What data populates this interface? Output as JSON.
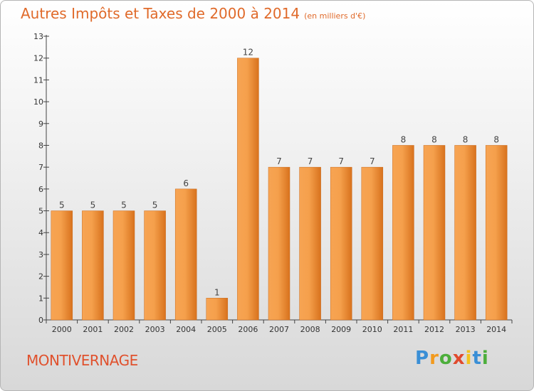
{
  "title": "Autres Impôts et Taxes de 2000 à 2014",
  "subtitle": "(en milliers d'€)",
  "commune": "MONTIVERNAGE",
  "logo": {
    "p": "P",
    "r": "r",
    "o": "o",
    "x": "x",
    "i1": "i",
    "t": "t",
    "i2": "i"
  },
  "colors": {
    "bar_light": "#f7a453",
    "bar_dark": "#d8721d",
    "title": "#e06a2a"
  },
  "chart_data": {
    "type": "bar",
    "categories": [
      "2000",
      "2001",
      "2002",
      "2003",
      "2004",
      "2005",
      "2006",
      "2007",
      "2008",
      "2009",
      "2010",
      "2011",
      "2012",
      "2013",
      "2014"
    ],
    "values": [
      5,
      5,
      5,
      5,
      6,
      1,
      12,
      7,
      7,
      7,
      7,
      8,
      8,
      8,
      8
    ],
    "yticks": [
      0,
      1,
      2,
      3,
      4,
      5,
      6,
      7,
      8,
      9,
      10,
      11,
      12,
      13
    ],
    "ylim": [
      0,
      13
    ],
    "grid": false
  }
}
